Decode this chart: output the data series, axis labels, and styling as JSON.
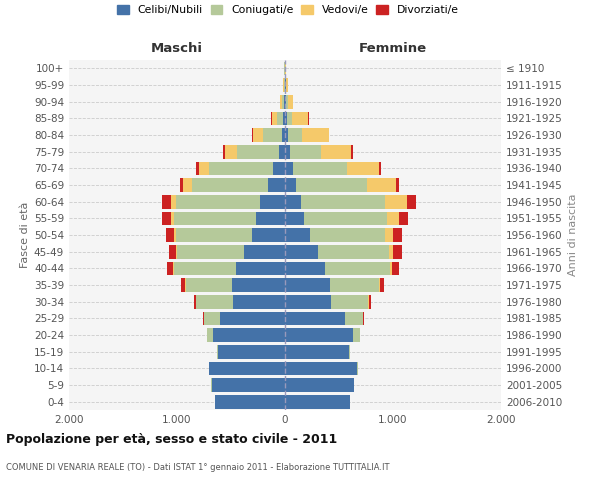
{
  "age_groups": [
    "0-4",
    "5-9",
    "10-14",
    "15-19",
    "20-24",
    "25-29",
    "30-34",
    "35-39",
    "40-44",
    "45-49",
    "50-54",
    "55-59",
    "60-64",
    "65-69",
    "70-74",
    "75-79",
    "80-84",
    "85-89",
    "90-94",
    "95-99",
    "100+"
  ],
  "birth_years": [
    "2006-2010",
    "2001-2005",
    "1996-2000",
    "1991-1995",
    "1986-1990",
    "1981-1985",
    "1976-1980",
    "1971-1975",
    "1966-1970",
    "1961-1965",
    "1956-1960",
    "1951-1955",
    "1946-1950",
    "1941-1945",
    "1936-1940",
    "1931-1935",
    "1926-1930",
    "1921-1925",
    "1916-1920",
    "1911-1915",
    "≤ 1910"
  ],
  "colors": {
    "celibi": "#4472a8",
    "coniugati": "#b5c99a",
    "vedovi": "#f5c96a",
    "divorziati": "#cc2222"
  },
  "maschi": {
    "celibi": [
      650,
      680,
      700,
      620,
      670,
      600,
      480,
      490,
      450,
      380,
      310,
      270,
      230,
      160,
      110,
      60,
      30,
      15,
      8,
      4,
      2
    ],
    "coniugati": [
      2,
      3,
      5,
      10,
      50,
      150,
      340,
      430,
      580,
      620,
      700,
      760,
      780,
      700,
      590,
      380,
      170,
      60,
      20,
      5,
      3
    ],
    "vedovi": [
      0,
      0,
      0,
      0,
      1,
      1,
      2,
      3,
      5,
      10,
      20,
      30,
      50,
      80,
      100,
      120,
      100,
      50,
      15,
      5,
      1
    ],
    "divorziati": [
      0,
      0,
      0,
      1,
      3,
      10,
      20,
      40,
      60,
      60,
      70,
      80,
      80,
      30,
      25,
      15,
      5,
      2,
      0,
      0,
      0
    ]
  },
  "femmine": {
    "celibi": [
      600,
      640,
      670,
      590,
      630,
      560,
      430,
      420,
      370,
      310,
      230,
      180,
      150,
      100,
      70,
      45,
      25,
      15,
      10,
      5,
      2
    ],
    "coniugati": [
      2,
      3,
      5,
      10,
      60,
      160,
      340,
      450,
      600,
      650,
      700,
      760,
      780,
      660,
      500,
      290,
      130,
      50,
      15,
      5,
      2
    ],
    "vedovi": [
      0,
      0,
      0,
      0,
      1,
      2,
      5,
      10,
      20,
      40,
      70,
      120,
      200,
      270,
      300,
      280,
      250,
      150,
      50,
      15,
      3
    ],
    "divorziati": [
      0,
      0,
      0,
      1,
      3,
      10,
      20,
      40,
      70,
      80,
      80,
      80,
      80,
      30,
      20,
      10,
      5,
      3,
      1,
      0,
      0
    ]
  },
  "xlim": 2000,
  "xticks": [
    -2000,
    -1000,
    0,
    1000,
    2000
  ],
  "xticklabels": [
    "2.000",
    "1.000",
    "0",
    "1.000",
    "2.000"
  ],
  "title": "Popolazione per età, sesso e stato civile - 2011",
  "subtitle": "COMUNE DI VENARIA REALE (TO) - Dati ISTAT 1° gennaio 2011 - Elaborazione TUTTITALIA.IT",
  "ylabel_left": "Fasce di età",
  "ylabel_right": "Anni di nascita",
  "col_maschi": "Maschi",
  "col_femmine": "Femmine",
  "legend_labels": [
    "Celibi/Nubili",
    "Coniugati/e",
    "Vedovi/e",
    "Divorziati/e"
  ],
  "bg_color": "#f5f5f5",
  "bar_height": 0.82
}
